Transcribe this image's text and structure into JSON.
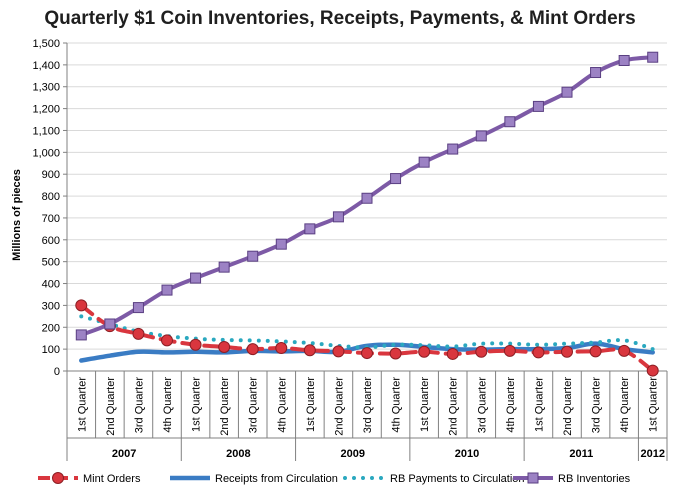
{
  "chart_data": {
    "type": "line",
    "title": "Quarterly $1 Coin Inventories, Receipts, Payments, & Mint Orders",
    "ylabel": "Millions of pieces",
    "ylim": [
      0,
      1500
    ],
    "yticks": [
      "0",
      "100",
      "200",
      "300",
      "400",
      "500",
      "600",
      "700",
      "800",
      "900",
      "1,000",
      "1,100",
      "1,200",
      "1,300",
      "1,400",
      "1,500"
    ],
    "categories": [
      "1st Quarter",
      "2nd Quarter",
      "3rd Quarter",
      "4th Quarter",
      "1st Quarter",
      "2nd Quarter",
      "3rd Quarter",
      "4th Quarter",
      "1st Quarter",
      "2nd Quarter",
      "3rd Quarter",
      "4th Quarter",
      "1st Quarter",
      "2nd Quarter",
      "3rd Quarter",
      "4th Quarter",
      "1st Quarter",
      "2nd Quarter",
      "3rd Quarter",
      "4th Quarter",
      "1st Quarter"
    ],
    "year_groups": [
      {
        "label": "2007",
        "count": 4
      },
      {
        "label": "2008",
        "count": 4
      },
      {
        "label": "2009",
        "count": 4
      },
      {
        "label": "2010",
        "count": 4
      },
      {
        "label": "2011",
        "count": 4
      },
      {
        "label": "2012",
        "count": 1
      }
    ],
    "grid": true,
    "legend_position": "bottom",
    "series": [
      {
        "name": "Mint Orders",
        "color": "#d9363e",
        "style": "dashed-circle",
        "values": [
          300,
          205,
          170,
          140,
          120,
          110,
          100,
          105,
          95,
          90,
          82,
          80,
          88,
          78,
          88,
          92,
          85,
          88,
          90,
          92,
          2
        ]
      },
      {
        "name": "Receipts from Circulation",
        "color": "#3a7cc4",
        "style": "solid-thick",
        "values": [
          48,
          70,
          88,
          85,
          88,
          85,
          92,
          90,
          92,
          88,
          115,
          120,
          110,
          100,
          98,
          100,
          100,
          105,
          125,
          100,
          85
        ]
      },
      {
        "name": "RB Payments to Circulation",
        "color": "#2aa8bf",
        "style": "dotted",
        "values": [
          250,
          215,
          180,
          160,
          148,
          142,
          140,
          135,
          128,
          115,
          108,
          120,
          118,
          112,
          125,
          125,
          120,
          125,
          130,
          140,
          100
        ]
      },
      {
        "name": "RB Inventories",
        "color": "#7d5aa6",
        "style": "square-marker",
        "values": [
          165,
          215,
          290,
          370,
          425,
          475,
          525,
          580,
          650,
          705,
          790,
          880,
          955,
          1015,
          1075,
          1140,
          1210,
          1275,
          1365,
          1420,
          1435
        ]
      }
    ]
  }
}
